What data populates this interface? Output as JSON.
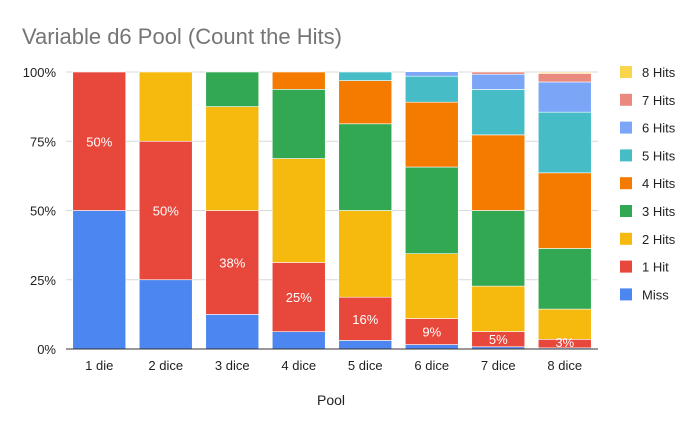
{
  "chart_data": {
    "type": "bar",
    "stacked": true,
    "normalized": true,
    "title": "Variable d6 Pool (Count the Hits)",
    "xlabel": "Pool",
    "ylabel": "",
    "ylim": [
      0,
      100
    ],
    "yticks": [
      "0%",
      "25%",
      "50%",
      "75%",
      "100%"
    ],
    "grid": true,
    "legend_position": "right",
    "categories": [
      "1 die",
      "2 dice",
      "3 dice",
      "4 dice",
      "5 dice",
      "6 dice",
      "7 dice",
      "8 dice"
    ],
    "series": [
      {
        "name": "Miss",
        "color": "#4c86f0",
        "values": [
          50,
          25,
          12.5,
          6.25,
          3.1,
          1.6,
          0.8,
          0.4
        ]
      },
      {
        "name": "1 Hit",
        "color": "#e8473b",
        "values": [
          50,
          50,
          37.5,
          25,
          15.6,
          9.4,
          5.5,
          3.1
        ]
      },
      {
        "name": "2 Hits",
        "color": "#f6b90d",
        "values": [
          0,
          25,
          37.5,
          37.5,
          31.3,
          23.4,
          16.4,
          10.9
        ]
      },
      {
        "name": "3 Hits",
        "color": "#33a853",
        "values": [
          0,
          0,
          12.5,
          25,
          31.3,
          31.3,
          27.3,
          21.9
        ]
      },
      {
        "name": "4 Hits",
        "color": "#f57a00",
        "values": [
          0,
          0,
          0,
          6.25,
          15.6,
          23.4,
          27.3,
          27.3
        ]
      },
      {
        "name": "5 Hits",
        "color": "#46bdc6",
        "values": [
          0,
          0,
          0,
          0,
          3.1,
          9.4,
          16.4,
          21.9
        ]
      },
      {
        "name": "6 Hits",
        "color": "#7ba6f7",
        "values": [
          0,
          0,
          0,
          0,
          0,
          1.6,
          5.5,
          10.9
        ]
      },
      {
        "name": "7 Hits",
        "color": "#ea8a7e",
        "values": [
          0,
          0,
          0,
          0,
          0,
          0,
          0.8,
          3.1
        ]
      },
      {
        "name": "8 Hits",
        "color": "#f9d44c",
        "values": [
          0,
          0,
          0,
          0,
          0,
          0,
          0,
          0.4
        ]
      }
    ],
    "data_labels": {
      "series": "1 Hit",
      "texts": [
        "50%",
        "50%",
        "38%",
        "25%",
        "16%",
        "9%",
        "5%",
        "3%"
      ]
    }
  }
}
